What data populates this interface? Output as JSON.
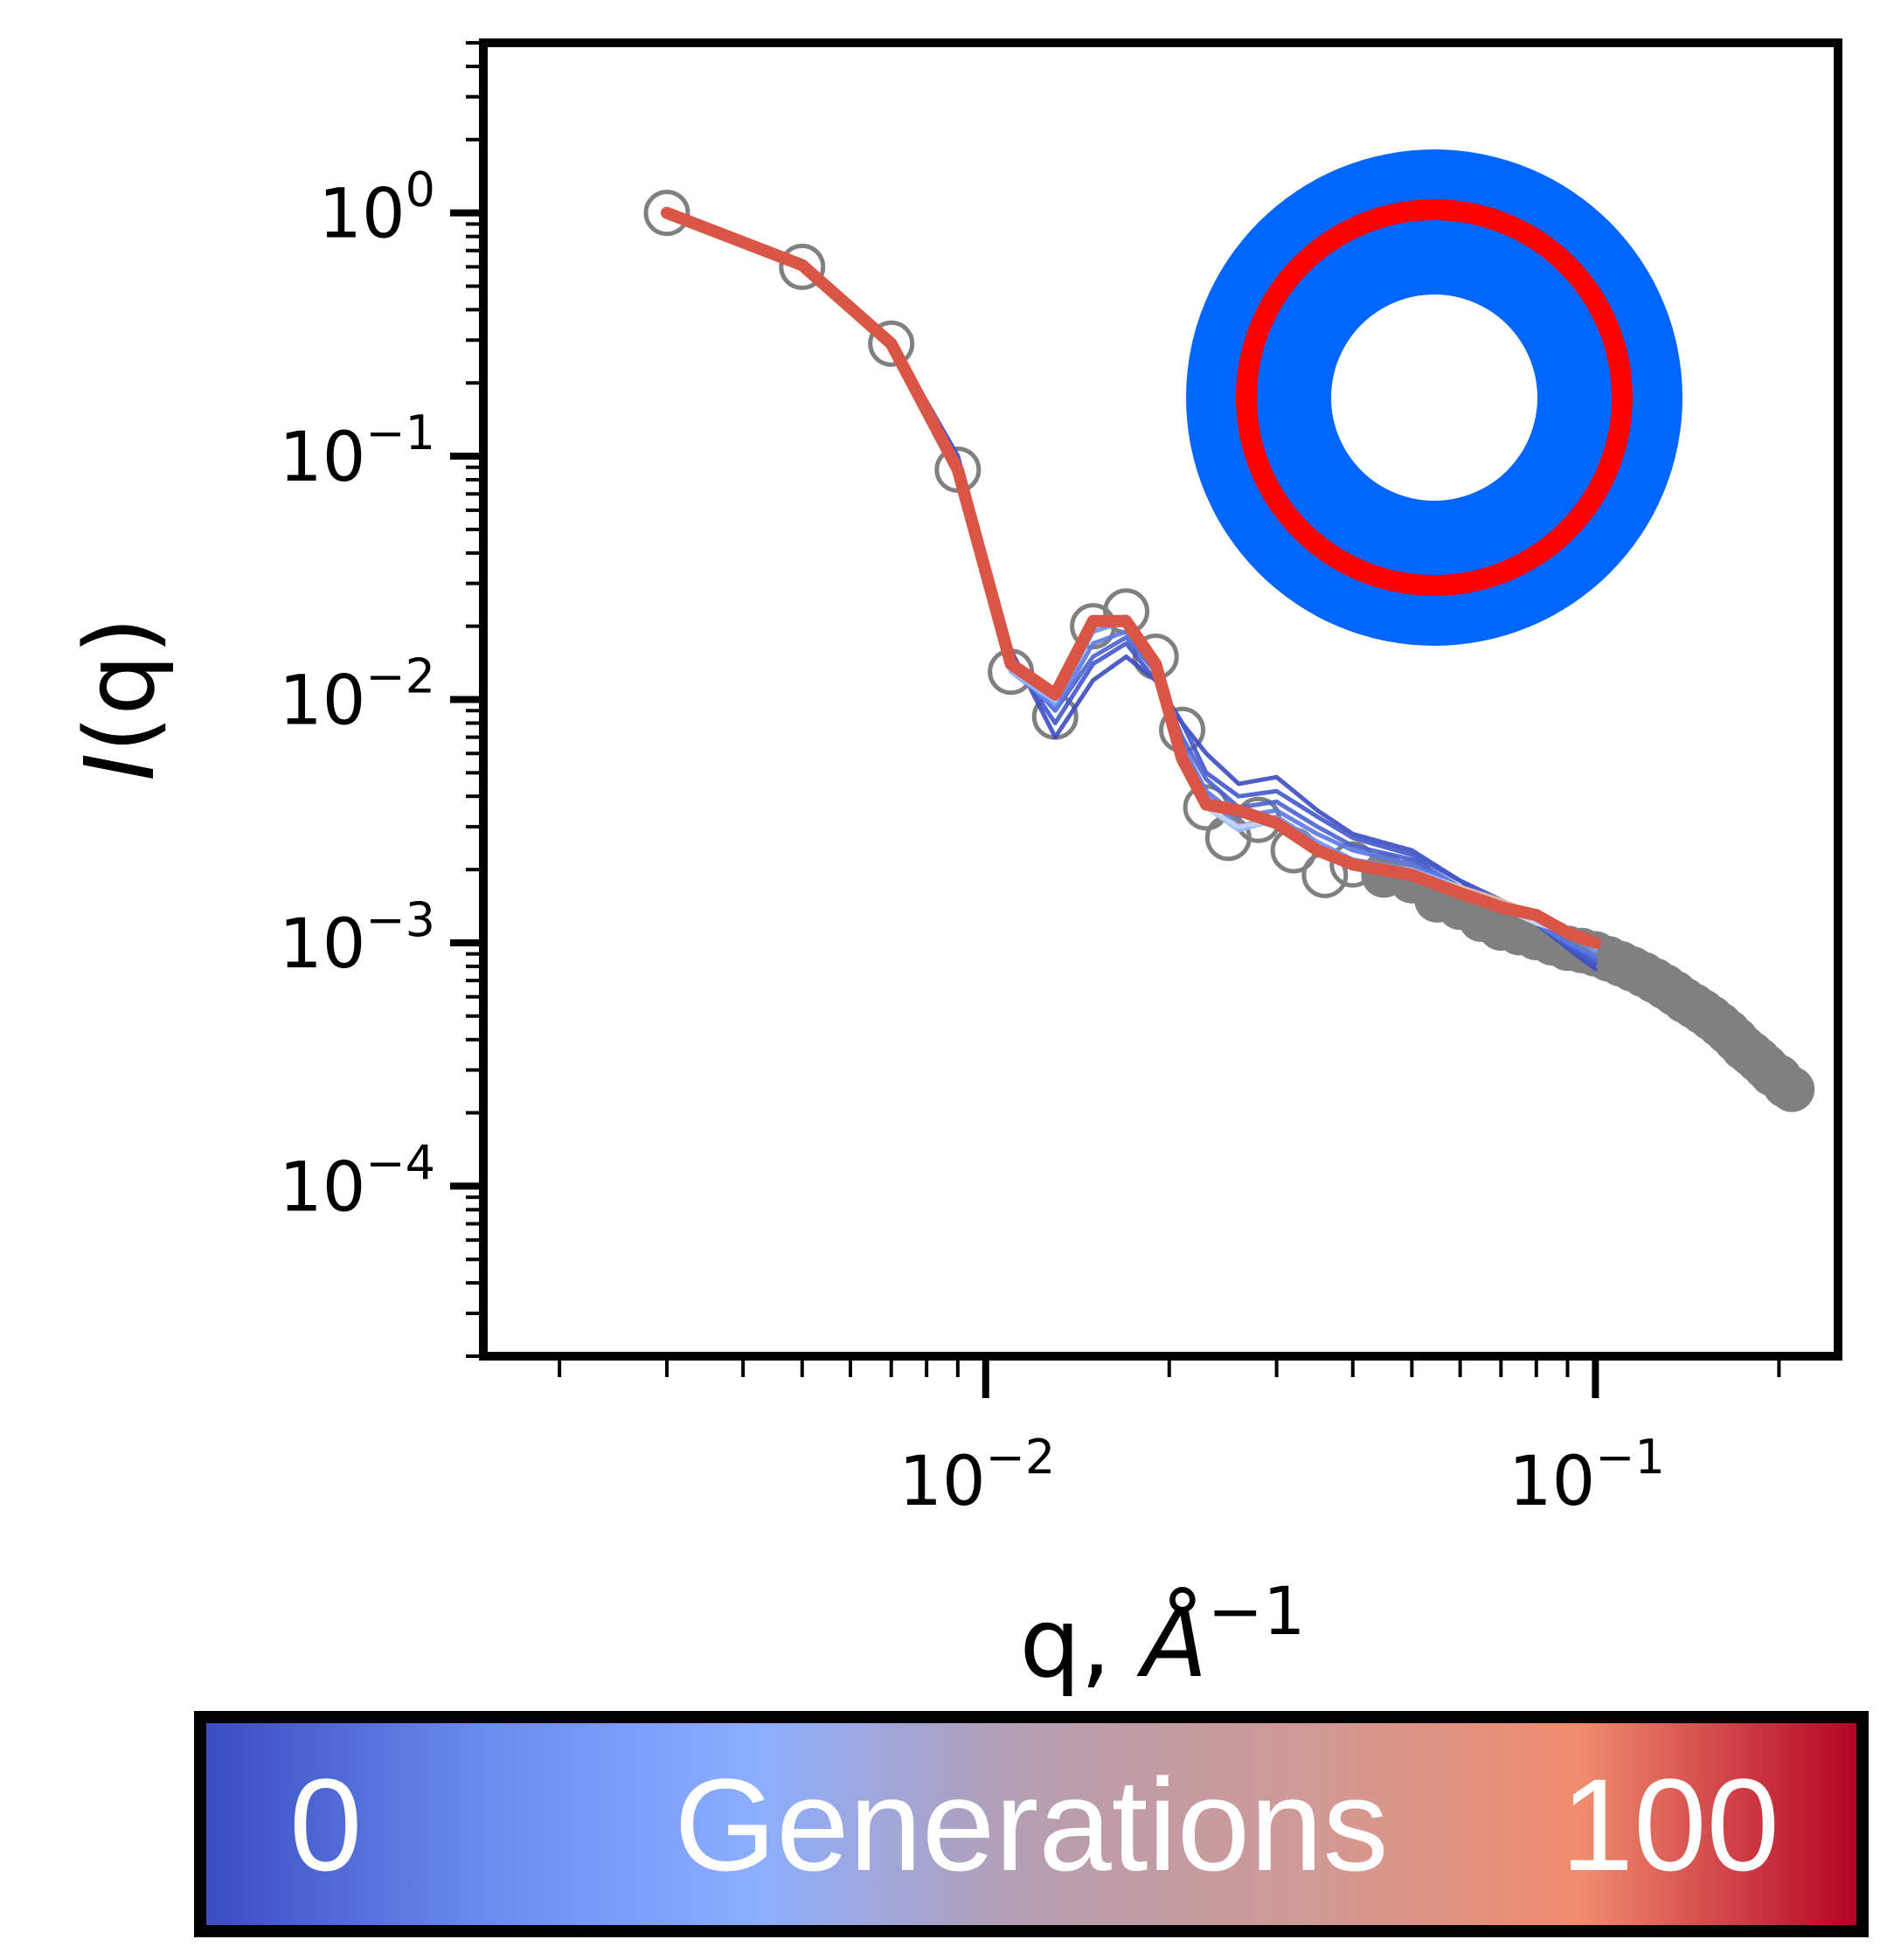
{
  "chart_data": {
    "type": "line",
    "xscale": "log",
    "yscale": "log",
    "xlim": [
      0.0015,
      0.25
    ],
    "ylim": [
      2e-05,
      5
    ],
    "x_ticks": [
      {
        "value": 0.01,
        "base": "10",
        "exp": "−2"
      },
      {
        "value": 0.1,
        "base": "10",
        "exp": "−1"
      }
    ],
    "y_ticks": [
      {
        "value": 1,
        "base": "10",
        "exp": "0"
      },
      {
        "value": 0.1,
        "base": "10",
        "exp": "−1"
      },
      {
        "value": 0.01,
        "base": "10",
        "exp": "−2"
      },
      {
        "value": 0.001,
        "base": "10",
        "exp": "−3"
      },
      {
        "value": 0.0001,
        "base": "10",
        "exp": "−4"
      }
    ],
    "xlabel": {
      "main": "q, ",
      "italic": "Å",
      "sup": "−1"
    },
    "ylabel": {
      "italic": "I",
      "rest": "(q)"
    },
    "grid": false,
    "data_points": {
      "color": "#808080",
      "x": [
        0.003,
        0.005,
        0.007,
        0.009,
        0.011,
        0.013,
        0.015,
        0.017,
        0.019,
        0.021,
        0.023,
        0.025,
        0.028,
        0.032,
        0.036,
        0.04,
        0.045,
        0.05,
        0.055,
        0.06,
        0.065,
        0.07,
        0.075,
        0.08,
        0.085,
        0.09,
        0.095,
        0.1,
        0.105,
        0.11,
        0.115,
        0.12,
        0.125,
        0.13,
        0.135,
        0.14,
        0.145,
        0.15,
        0.155,
        0.16,
        0.165,
        0.17,
        0.175,
        0.18,
        0.185,
        0.19,
        0.195,
        0.2,
        0.205,
        0.21
      ],
      "y": [
        1.0,
        0.6,
        0.29,
        0.088,
        0.013,
        0.0085,
        0.02,
        0.023,
        0.015,
        0.0075,
        0.0036,
        0.0027,
        0.0032,
        0.0024,
        0.0019,
        0.0021,
        0.0019,
        0.0018,
        0.0015,
        0.0014,
        0.00125,
        0.00115,
        0.0011,
        0.00105,
        0.001,
        0.00095,
        0.00093,
        0.0009,
        0.00086,
        0.00082,
        0.00078,
        0.00074,
        0.0007,
        0.00066,
        0.00062,
        0.00058,
        0.00055,
        0.00052,
        0.00049,
        0.00046,
        0.00043,
        0.0004,
        0.00037,
        0.00035,
        0.00033,
        0.00031,
        0.00029,
        0.00028,
        0.00026,
        0.00025
      ]
    },
    "fit_q": [
      0.003,
      0.005,
      0.007,
      0.009,
      0.011,
      0.013,
      0.015,
      0.017,
      0.019,
      0.021,
      0.023,
      0.026,
      0.03,
      0.035,
      0.04,
      0.05,
      0.06,
      0.07,
      0.08,
      0.09,
      0.1
    ],
    "series": [
      {
        "generation": 0,
        "color": "#3b4cc0",
        "values": [
          1.0,
          0.6,
          0.3,
          0.1,
          0.016,
          0.007,
          0.012,
          0.015,
          0.012,
          0.008,
          0.006,
          0.0045,
          0.0048,
          0.0035,
          0.0028,
          0.0024,
          0.0018,
          0.0015,
          0.0012,
          0.00095,
          0.00078
        ]
      },
      {
        "generation": 5,
        "color": "#4358cb",
        "values": [
          1.0,
          0.61,
          0.3,
          0.1,
          0.015,
          0.008,
          0.014,
          0.017,
          0.012,
          0.008,
          0.005,
          0.004,
          0.0042,
          0.0033,
          0.0027,
          0.0023,
          0.0018,
          0.0014,
          0.0012,
          0.00098,
          0.00082
        ]
      },
      {
        "generation": 10,
        "color": "#4a63d3",
        "values": [
          1.0,
          0.6,
          0.29,
          0.095,
          0.015,
          0.009,
          0.015,
          0.018,
          0.013,
          0.007,
          0.0047,
          0.0036,
          0.0038,
          0.003,
          0.0025,
          0.0022,
          0.0017,
          0.0014,
          0.0012,
          0.001,
          0.00085
        ]
      },
      {
        "generation": 20,
        "color": "#5a78e2",
        "values": [
          1.0,
          0.6,
          0.29,
          0.092,
          0.014,
          0.009,
          0.017,
          0.019,
          0.013,
          0.0065,
          0.0042,
          0.0033,
          0.0035,
          0.0028,
          0.0024,
          0.0021,
          0.0017,
          0.0014,
          0.0012,
          0.001,
          0.00088
        ]
      },
      {
        "generation": 30,
        "color": "#6c8ff1",
        "values": [
          1.0,
          0.6,
          0.29,
          0.09,
          0.013,
          0.0095,
          0.019,
          0.021,
          0.014,
          0.006,
          0.004,
          0.003,
          0.0033,
          0.0026,
          0.0022,
          0.002,
          0.0017,
          0.0014,
          0.0012,
          0.0011,
          0.00092
        ]
      },
      {
        "generation": 40,
        "color": "#9abbff",
        "values": [
          1.0,
          0.6,
          0.29,
          0.089,
          0.013,
          0.0098,
          0.02,
          0.022,
          0.014,
          0.006,
          0.0036,
          0.0029,
          0.0032,
          0.0025,
          0.0021,
          0.002,
          0.0017,
          0.0014,
          0.0012,
          0.0011,
          0.00095
        ]
      },
      {
        "generation": 50,
        "color": "#c9d7f0",
        "values": [
          1.0,
          0.6,
          0.29,
          0.089,
          0.0135,
          0.0102,
          0.021,
          0.022,
          0.014,
          0.0058,
          0.0036,
          0.003,
          0.0032,
          0.0025,
          0.0021,
          0.0019,
          0.0017,
          0.0014,
          0.0012,
          0.0011,
          0.00098
        ]
      },
      {
        "generation": 70,
        "color": "#f1b9a0",
        "values": [
          1.0,
          0.6,
          0.29,
          0.089,
          0.014,
          0.0105,
          0.021,
          0.021,
          0.014,
          0.0058,
          0.0037,
          0.0034,
          0.0031,
          0.0024,
          0.0021,
          0.0019,
          0.0017,
          0.0015,
          0.0013,
          0.0011,
          0.001
        ]
      },
      {
        "generation": 85,
        "color": "#e8806b",
        "values": [
          1.0,
          0.6,
          0.29,
          0.089,
          0.014,
          0.0105,
          0.021,
          0.021,
          0.014,
          0.0057,
          0.0037,
          0.0035,
          0.0031,
          0.0024,
          0.0021,
          0.0019,
          0.0016,
          0.0014,
          0.0013,
          0.0011,
          0.001
        ]
      },
      {
        "generation": 100,
        "color": "#d95545",
        "values": [
          1.0,
          0.61,
          0.29,
          0.088,
          0.014,
          0.0105,
          0.021,
          0.021,
          0.014,
          0.0057,
          0.0037,
          0.0035,
          0.0031,
          0.0024,
          0.0021,
          0.0019,
          0.0016,
          0.0014,
          0.0013,
          0.0011,
          0.001
        ]
      }
    ],
    "inset": {
      "shape": "core-shell",
      "outer_color": "#0066ff",
      "ring_color": "#ff0000",
      "core_color": "#ffffff"
    },
    "colorbar": {
      "min_label": "0",
      "label": "Generations",
      "max_label": "100",
      "colors": [
        "#3b4cc0",
        "#6a8bef",
        "#8caeff",
        "#b79eb0",
        "#d09a96",
        "#f08c6e",
        "#b40426"
      ]
    }
  }
}
